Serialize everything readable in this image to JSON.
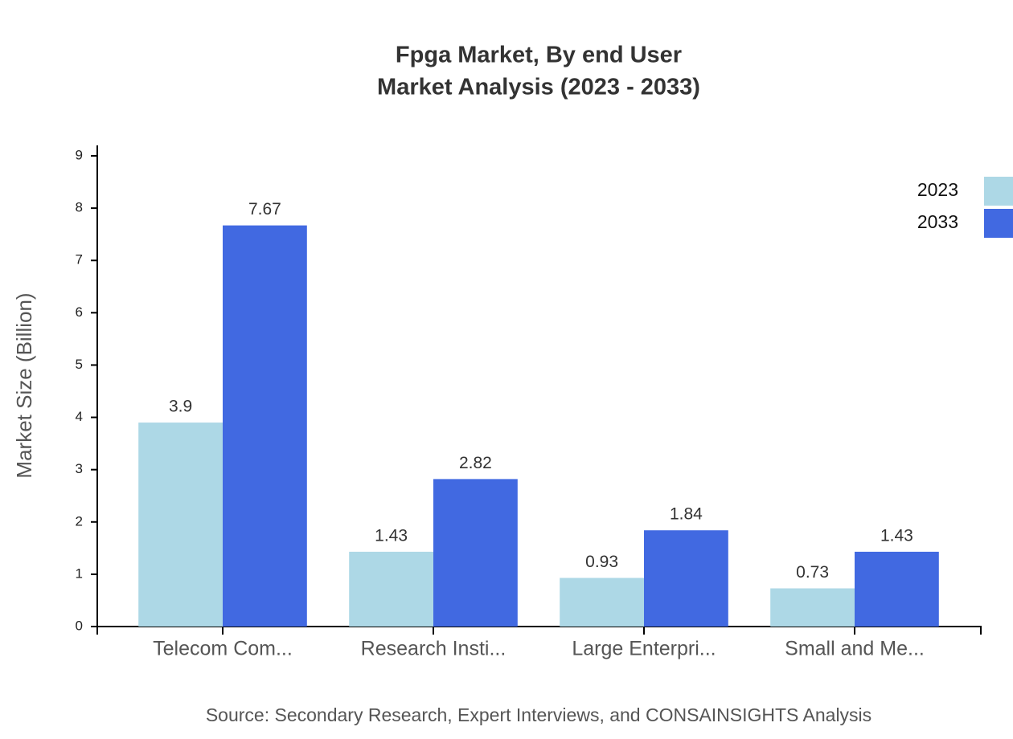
{
  "chart_data": {
    "type": "bar",
    "title": "Fpga Market, By end User",
    "subtitle": "Market Analysis (2023 - 2033)",
    "y_label": "Market Size (Billion)",
    "source": "Source: Secondary Research, Expert Interviews, and CONSAINSIGHTS Analysis",
    "categories": [
      "Telecom Com...",
      "Research Insti...",
      "Large Enterpri...",
      "Small and Me..."
    ],
    "series": [
      {
        "name": "2023",
        "color": "#add8e6",
        "values": [
          3.9,
          1.43,
          0.93,
          0.73
        ]
      },
      {
        "name": "2033",
        "color": "#4169e1",
        "values": [
          7.67,
          2.82,
          1.84,
          1.43
        ]
      }
    ],
    "ylim": [
      0,
      9.2
    ],
    "yticks": [
      0,
      1,
      2,
      3,
      4,
      5,
      6,
      7,
      8,
      9
    ],
    "legend": "top-right"
  }
}
